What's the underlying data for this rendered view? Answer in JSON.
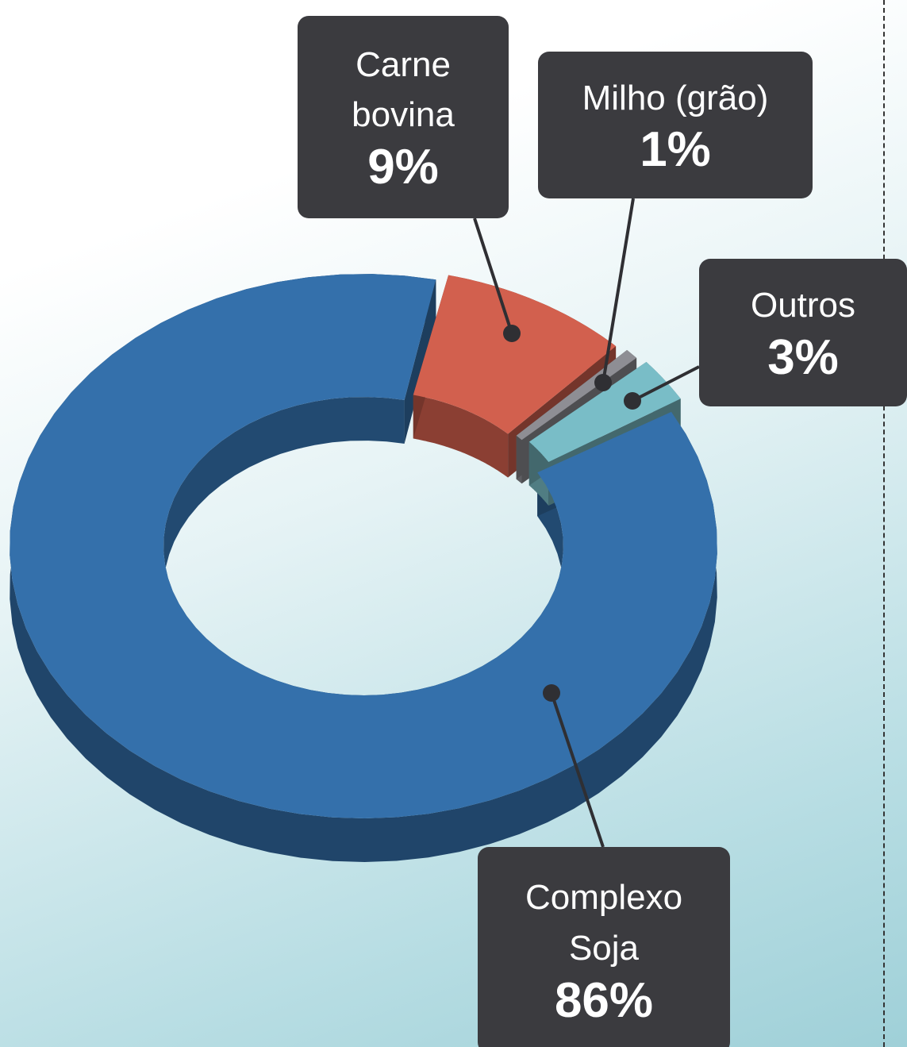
{
  "chart_data": {
    "type": "donut3d",
    "categories": [
      "Complexo Soja",
      "Carne bovina",
      "Milho (grão)",
      "Outros"
    ],
    "values": [
      86,
      9,
      1,
      3
    ],
    "value_labels": [
      "86%",
      "9%",
      "1%",
      "3%"
    ],
    "colors": [
      "#3470ab",
      "#d2604e",
      "#8e8e94",
      "#79bdc7"
    ]
  }
}
